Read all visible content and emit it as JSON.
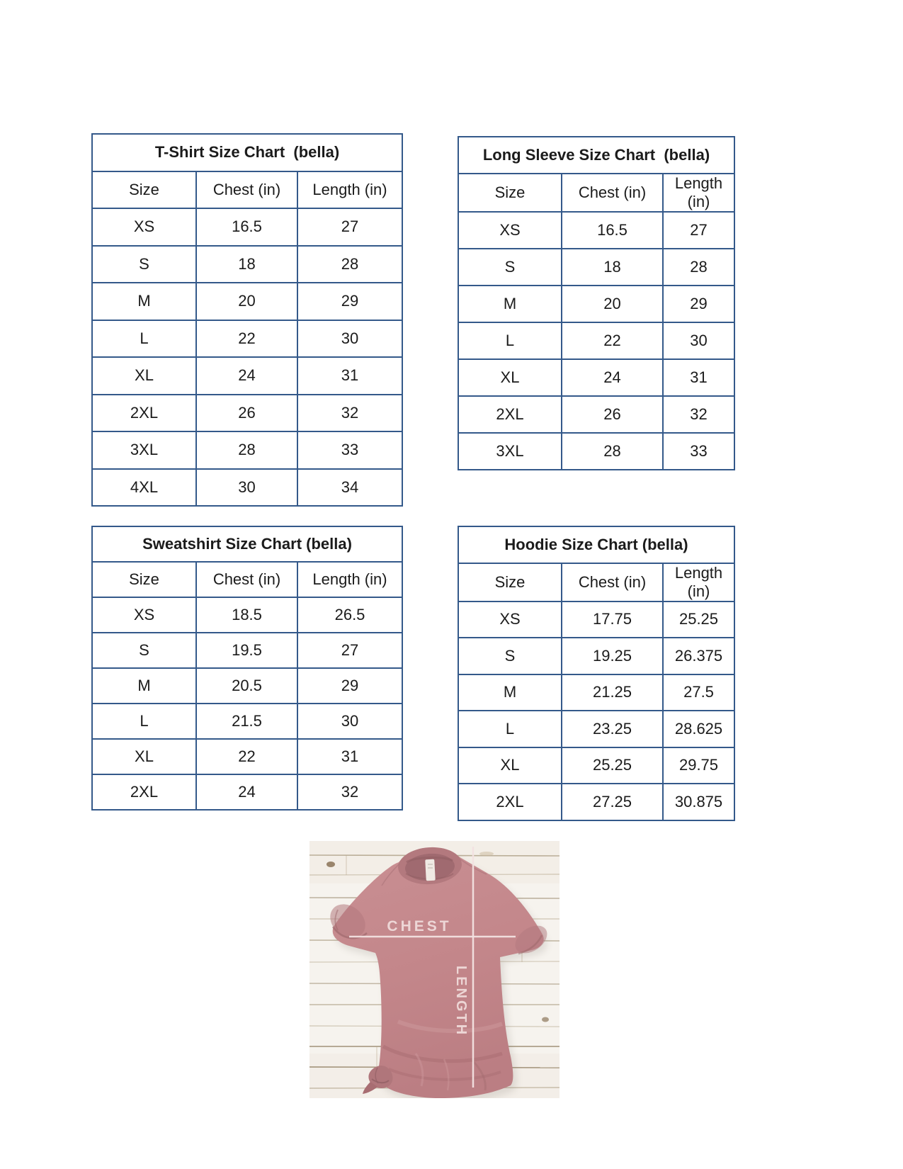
{
  "page": {
    "background": "#ffffff",
    "description": "Apparel size chart sheet with four bordered tables and a t-shirt measurement photo"
  },
  "colors": {
    "table_border": "#34598a",
    "table_text": "#1b1b1b",
    "shirt_mauve": "#c3868a",
    "measure_line": "#f3e2e1",
    "wood_background": "#f6f3ee"
  },
  "tables": [
    {
      "id": "tshirt",
      "title": "T-Shirt Size Chart  (bella)",
      "columns": [
        "Size",
        "Chest (in)",
        "Length (in)"
      ],
      "rows": [
        [
          "XS",
          "16.5",
          "27"
        ],
        [
          "S",
          "18",
          "28"
        ],
        [
          "M",
          "20",
          "29"
        ],
        [
          "L",
          "22",
          "30"
        ],
        [
          "XL",
          "24",
          "31"
        ],
        [
          "2XL",
          "26",
          "32"
        ],
        [
          "3XL",
          "28",
          "33"
        ],
        [
          "4XL",
          "30",
          "34"
        ]
      ]
    },
    {
      "id": "longsleeve",
      "title": "Long Sleeve Size Chart  (bella)",
      "columns": [
        "Size",
        "Chest (in)",
        "Length (in)"
      ],
      "rows": [
        [
          "XS",
          "16.5",
          "27"
        ],
        [
          "S",
          "18",
          "28"
        ],
        [
          "M",
          "20",
          "29"
        ],
        [
          "L",
          "22",
          "30"
        ],
        [
          "XL",
          "24",
          "31"
        ],
        [
          "2XL",
          "26",
          "32"
        ],
        [
          "3XL",
          "28",
          "33"
        ]
      ]
    },
    {
      "id": "sweatshirt",
      "title": "Sweatshirt Size Chart (bella)",
      "columns": [
        "Size",
        "Chest (in)",
        "Length (in)"
      ],
      "rows": [
        [
          "XS",
          "18.5",
          "26.5"
        ],
        [
          "S",
          "19.5",
          "27"
        ],
        [
          "M",
          "20.5",
          "29"
        ],
        [
          "L",
          "21.5",
          "30"
        ],
        [
          "XL",
          "22",
          "31"
        ],
        [
          "2XL",
          "24",
          "32"
        ]
      ]
    },
    {
      "id": "hoodie",
      "title": "Hoodie Size Chart (bella)",
      "columns": [
        "Size",
        "Chest (in)",
        "Length (in)"
      ],
      "rows": [
        [
          "XS",
          "17.75",
          "25.25"
        ],
        [
          "S",
          "19.25",
          "26.375"
        ],
        [
          "M",
          "21.25",
          "27.5"
        ],
        [
          "L",
          "23.25",
          "28.625"
        ],
        [
          "XL",
          "25.25",
          "29.75"
        ],
        [
          "2XL",
          "27.25",
          "30.875"
        ]
      ]
    }
  ],
  "photo": {
    "chest_label": "CHEST",
    "length_label": "LENGTH"
  }
}
